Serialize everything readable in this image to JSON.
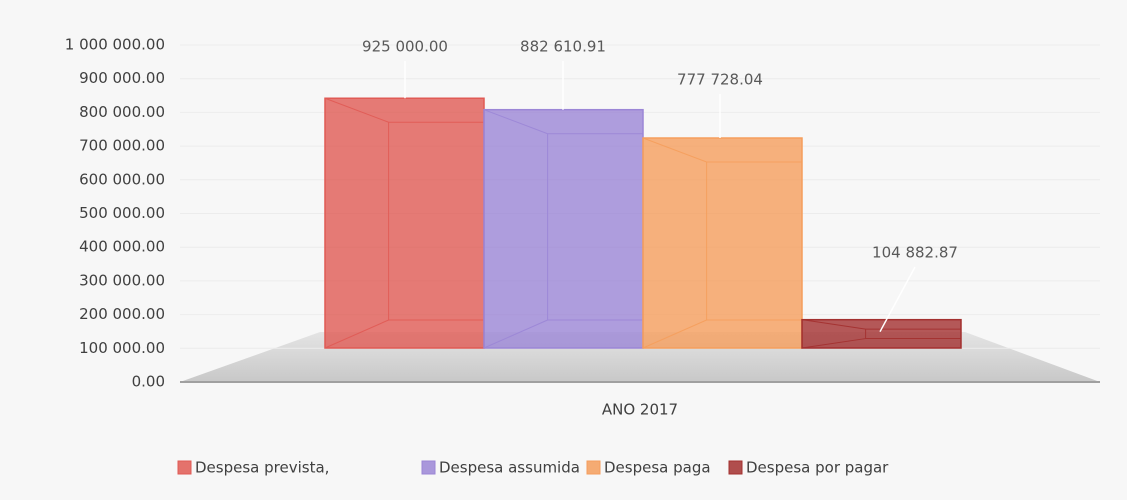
{
  "chart_data": {
    "type": "bar3d",
    "categories": [
      "ANO 2017"
    ],
    "series": [
      {
        "name": "Despesa prevista,",
        "color": "#e05a54",
        "values": [
          925000
        ],
        "value_labels": [
          "925 000.00"
        ]
      },
      {
        "name": "Despesa assumida",
        "color": "#9b86d6",
        "values": [
          882610.91
        ],
        "value_labels": [
          "882 610.91"
        ]
      },
      {
        "name": "Despesa paga",
        "color": "#f59e5c",
        "values": [
          777728.04
        ],
        "value_labels": [
          "777 728.04"
        ]
      },
      {
        "name": "Despesa por pagar",
        "color": "#a3302f",
        "values": [
          104882.87
        ],
        "value_labels": [
          "104 882.87"
        ]
      }
    ],
    "ylim": [
      0,
      1000000
    ],
    "yticks": [
      {
        "value": 0,
        "label": "0.00"
      },
      {
        "value": 100000,
        "label": "100 000.00"
      },
      {
        "value": 200000,
        "label": "200 000.00"
      },
      {
        "value": 300000,
        "label": "300 000.00"
      },
      {
        "value": 400000,
        "label": "400 000.00"
      },
      {
        "value": 500000,
        "label": "500 000.00"
      },
      {
        "value": 600000,
        "label": "600 000.00"
      },
      {
        "value": 700000,
        "label": "700 000.00"
      },
      {
        "value": 800000,
        "label": "800 000.00"
      },
      {
        "value": 900000,
        "label": "900 000.00"
      },
      {
        "value": 1000000,
        "label": "1 000 000.00"
      }
    ],
    "legend": "bottom"
  }
}
